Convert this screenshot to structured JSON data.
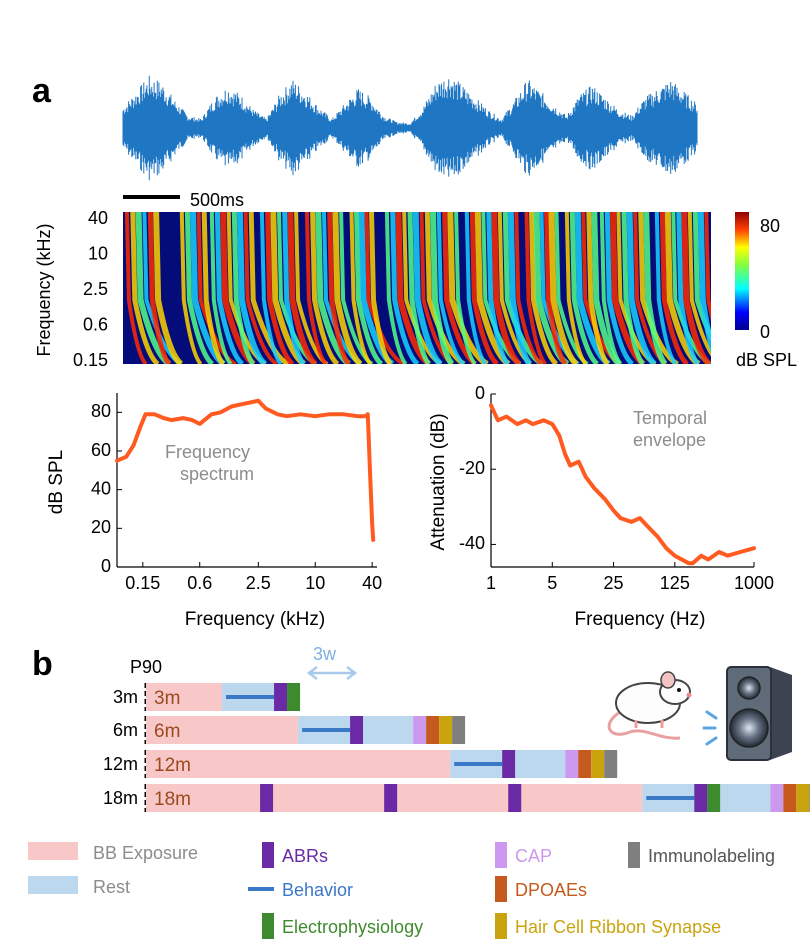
{
  "panel_labels": {
    "a": "a",
    "b": "b"
  },
  "waveform": {
    "scale_bar_label": "500ms",
    "color": "#1f77c4",
    "envelope": [
      0.35,
      0.6,
      0.85,
      0.75,
      0.45,
      0.2,
      0.15,
      0.5,
      0.7,
      0.55,
      0.3,
      0.15,
      0.55,
      0.8,
      0.6,
      0.35,
      0.15,
      0.4,
      0.65,
      0.5,
      0.2,
      0.1,
      0.08,
      0.35,
      0.75,
      0.9,
      0.7,
      0.5,
      0.3,
      0.15,
      0.45,
      0.8,
      0.6,
      0.4,
      0.2,
      0.55,
      0.7,
      0.5,
      0.3,
      0.2,
      0.5,
      0.65,
      0.8,
      0.6,
      0.4
    ]
  },
  "spectrogram": {
    "ylabel": "Frequency (kHz)",
    "yticks": [
      "40",
      "10",
      "2.5",
      "0.6",
      "0.15"
    ],
    "colorbar": {
      "max": "80",
      "min": "0",
      "label": "dB SPL"
    }
  },
  "chart_data": [
    {
      "type": "line",
      "annotation": "Frequency spectrum",
      "xlabel": "Frequency (kHz)",
      "ylabel": "dB SPL",
      "xscale": "log",
      "xticks": [
        "0.15",
        "0.6",
        "2.5",
        "10",
        "40"
      ],
      "yticks": [
        "0",
        "20",
        "40",
        "60",
        "80"
      ],
      "xlim": [
        0.08,
        45
      ],
      "ylim": [
        0,
        90
      ],
      "color": "#ff5a1f",
      "series": [
        {
          "x": [
            0.08,
            0.1,
            0.12,
            0.14,
            0.16,
            0.2,
            0.25,
            0.3,
            0.4,
            0.5,
            0.6,
            0.8,
            1.0,
            1.3,
            1.6,
            2.0,
            2.5,
            3.0,
            4.0,
            5.0,
            7.0,
            10,
            14,
            20,
            28,
            34,
            36,
            38,
            40,
            41
          ],
          "y": [
            55,
            57,
            63,
            72,
            79,
            79,
            77,
            76,
            77,
            76,
            74,
            79,
            80,
            83,
            84,
            85,
            86,
            82,
            79,
            78,
            79,
            78,
            79,
            79,
            78,
            78,
            79,
            48,
            22,
            14
          ]
        }
      ]
    },
    {
      "type": "line",
      "annotation": "Temporal envelope",
      "xlabel": "Frequency (Hz)",
      "ylabel": "Attenuation (dB)",
      "xscale": "log",
      "xticks": [
        "1",
        "5",
        "25",
        "125",
        "1000"
      ],
      "yticks": [
        "0",
        "-20",
        "-40"
      ],
      "xlim": [
        1,
        1000
      ],
      "ylim": [
        -46,
        0
      ],
      "color": "#ff5a1f",
      "series": [
        {
          "x": [
            1,
            1.2,
            1.5,
            2,
            2.5,
            3,
            4,
            5,
            6,
            7,
            8,
            10,
            12,
            15,
            20,
            25,
            30,
            40,
            50,
            60,
            80,
            100,
            125,
            150,
            180,
            200,
            250,
            300,
            400,
            500,
            700,
            1000
          ],
          "y": [
            -3,
            -7,
            -6,
            -8,
            -7,
            -8,
            -7,
            -8,
            -11,
            -16,
            -19,
            -18,
            -22,
            -25,
            -28,
            -31,
            -33,
            -34,
            -33,
            -35,
            -38,
            -41,
            -43,
            -44,
            -45,
            -45,
            -43,
            -44,
            -42,
            -43,
            -42,
            -41
          ]
        }
      ]
    },
    {
      "type": "timeline",
      "start_label": "P90",
      "duration_label": "3w",
      "rows": [
        {
          "label": "3m",
          "bar_label": "3m",
          "exposure_months": 3,
          "interruptions": [],
          "markers": [
            "ABRs",
            "Electrophysiology"
          ]
        },
        {
          "label": "6m",
          "bar_label": "6m",
          "exposure_months": 6,
          "interruptions": [],
          "markers": [
            "ABRs",
            "CAP",
            "DPOAEs",
            "Hair Cell Ribbon Synapse",
            "Immunolabeling"
          ]
        },
        {
          "label": "12m",
          "bar_label": "12m",
          "exposure_months": 12,
          "interruptions": [],
          "markers": [
            "ABRs",
            "CAP",
            "DPOAEs",
            "Hair Cell Ribbon Synapse",
            "Immunolabeling"
          ]
        },
        {
          "label": "18m",
          "bar_label": "18m",
          "exposure_months": 18,
          "interruptions": [
            "ABRs",
            "ABRs",
            "ABRs"
          ],
          "markers": [
            "ABRs",
            "Electrophysiology",
            "CAP",
            "DPOAEs",
            "Hair Cell Ribbon Synapse",
            "Immunolabeling"
          ]
        }
      ]
    }
  ],
  "legend": [
    {
      "label": "BB Exposure",
      "color": "#f8c8c8",
      "text_color": "#8c8c8c",
      "kind": "bar"
    },
    {
      "label": "Rest",
      "color": "#bcd8ef",
      "text_color": "#8c8c8c",
      "kind": "bar"
    },
    {
      "label": "ABRs",
      "color": "#6a2aa6",
      "text_color": "#6a2aa6",
      "kind": "tick"
    },
    {
      "label": "Behavior",
      "color": "#3b78c8",
      "text_color": "#3b78c8",
      "kind": "line"
    },
    {
      "label": "Electrophysiology",
      "color": "#3e8a2e",
      "text_color": "#3e8a2e",
      "kind": "tick"
    },
    {
      "label": "CAP",
      "color": "#cc99ee",
      "text_color": "#cc99ee",
      "kind": "tick"
    },
    {
      "label": "DPOAEs",
      "color": "#c65a1e",
      "text_color": "#c65a1e",
      "kind": "tick"
    },
    {
      "label": "Hair Cell Ribbon Synapse",
      "color": "#c9a40e",
      "text_color": "#c9a40e",
      "kind": "tick"
    },
    {
      "label": "Immunolabeling",
      "color": "#7f7f7f",
      "text_color": "#555555",
      "kind": "tick"
    }
  ]
}
